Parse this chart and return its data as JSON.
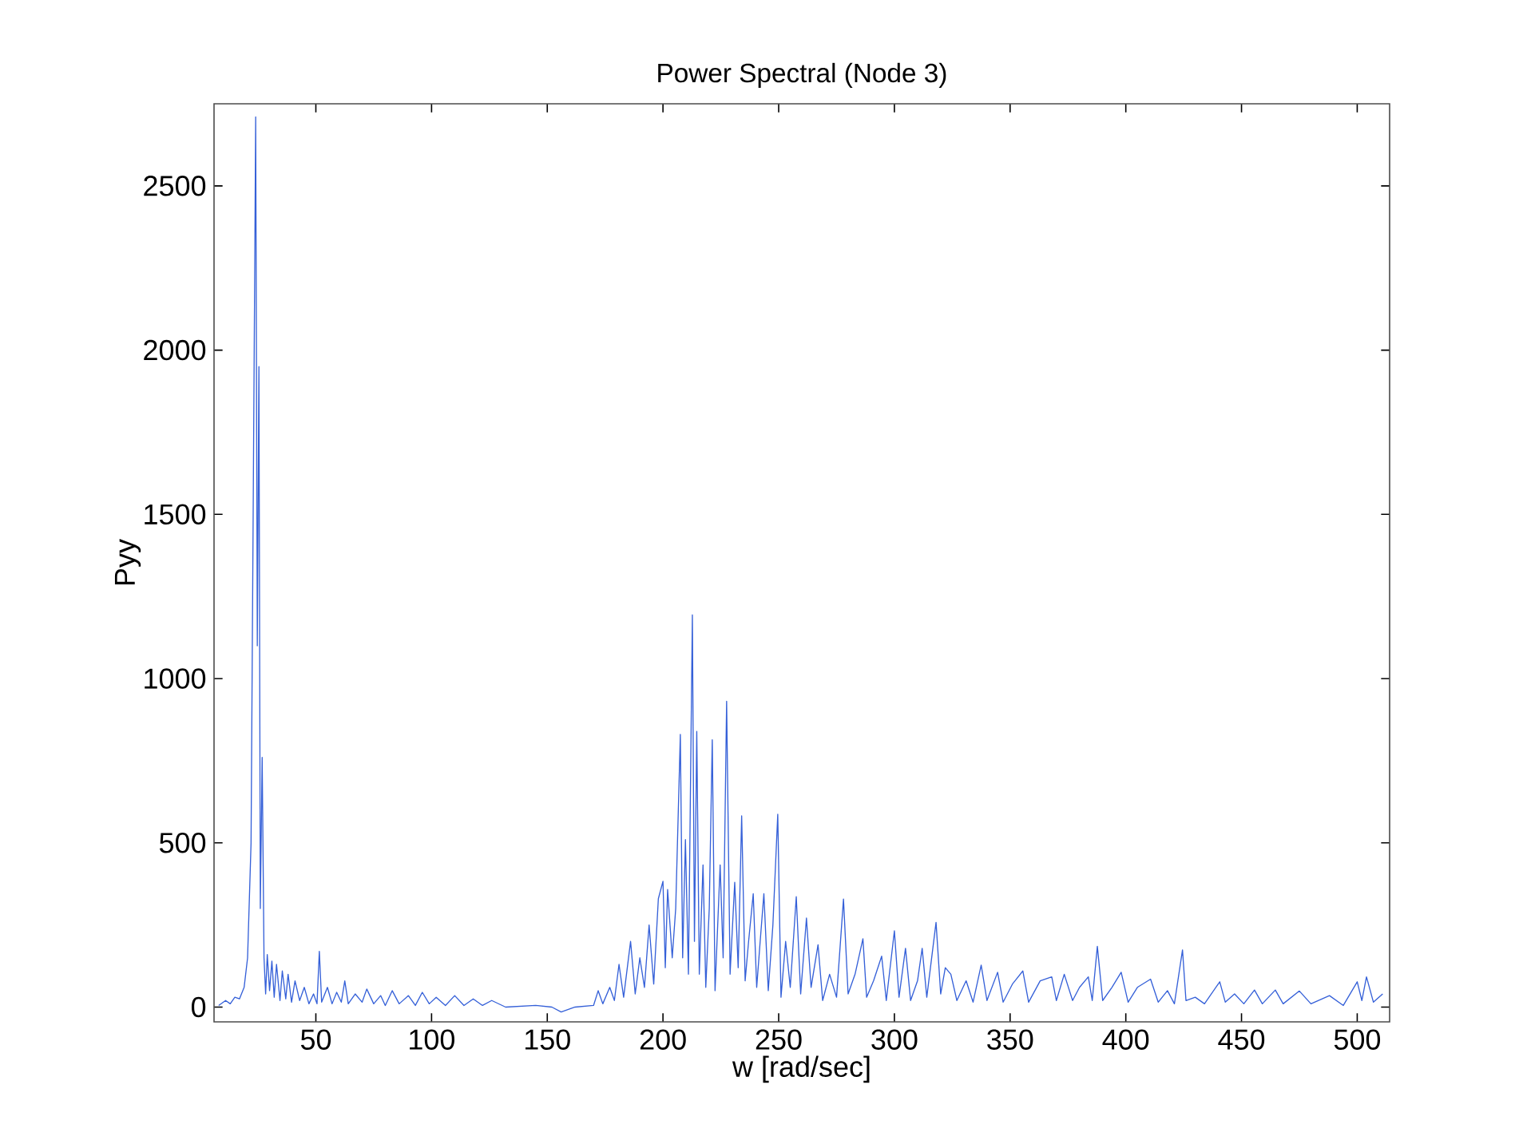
{
  "chart_data": {
    "type": "line",
    "title": "Power Spectral (Node 3)",
    "xlabel": "w [rad/sec]",
    "ylabel": "Pyy",
    "xlim": [
      6,
      514
    ],
    "ylim": [
      -45,
      2750
    ],
    "xticks": [
      50,
      100,
      150,
      200,
      250,
      300,
      350,
      400,
      450,
      500
    ],
    "yticks": [
      0,
      500,
      1000,
      1500,
      2000,
      2500
    ],
    "x": [
      8,
      11,
      13,
      15,
      17,
      19,
      20.5,
      22,
      23,
      24,
      24.7,
      25.4,
      26,
      26.8,
      27.6,
      28.3,
      29,
      30,
      31,
      32,
      33,
      34.5,
      35.5,
      37,
      38,
      39.5,
      41,
      43,
      45,
      47,
      49,
      50.5,
      51.5,
      52.5,
      55,
      57,
      59,
      61,
      62.5,
      64,
      67,
      70,
      72,
      75,
      78,
      80,
      83,
      86,
      90,
      93,
      96,
      99,
      102,
      106,
      110,
      114,
      118,
      122,
      126,
      132,
      145,
      152,
      156,
      162,
      170,
      172,
      174,
      177,
      179,
      181,
      183,
      186,
      188,
      190,
      192,
      194,
      196,
      198,
      200,
      201,
      202,
      204,
      205.5,
      207.5,
      208.5,
      209.7,
      211,
      212.7,
      213.6,
      214.6,
      215.7,
      217.3,
      218.5,
      220,
      221.3,
      222.5,
      224.7,
      226,
      227.5,
      229,
      231,
      232.5,
      234,
      235.5,
      237,
      239,
      240.5,
      242,
      243.6,
      245.5,
      247.5,
      249.6,
      251,
      253,
      255,
      257.6,
      259.5,
      262,
      264,
      267,
      269,
      272,
      275,
      278,
      280,
      283,
      286.4,
      288,
      291,
      294.5,
      296.5,
      300,
      302,
      304.8,
      307,
      310,
      312,
      314,
      318,
      320,
      322,
      324.4,
      327,
      331,
      334,
      337.5,
      340,
      344.6,
      347,
      351,
      355.5,
      358,
      363,
      368,
      370,
      373.4,
      377,
      380,
      383.8,
      385.5,
      387.7,
      390,
      394,
      398,
      401,
      405,
      410.7,
      414,
      418,
      421,
      424.5,
      426,
      430,
      434,
      440.6,
      443,
      447,
      451,
      455.6,
      459,
      464.6,
      468,
      475,
      480,
      488,
      494,
      500,
      502,
      504,
      507,
      511
    ],
    "series": [
      {
        "color": "#3560d8",
        "values": [
          5,
          20,
          10,
          30,
          25,
          60,
          150,
          500,
          1600,
          2710,
          1100,
          1950,
          300,
          760,
          150,
          40,
          160,
          50,
          140,
          30,
          130,
          20,
          110,
          25,
          100,
          15,
          80,
          20,
          60,
          10,
          40,
          10,
          170,
          15,
          60,
          10,
          45,
          15,
          80,
          10,
          40,
          15,
          55,
          10,
          35,
          5,
          50,
          10,
          35,
          5,
          45,
          10,
          30,
          5,
          35,
          5,
          25,
          5,
          20,
          0,
          5,
          0,
          -15,
          0,
          5,
          50,
          10,
          60,
          20,
          130,
          30,
          200,
          40,
          150,
          60,
          250,
          70,
          330,
          383,
          120,
          358,
          150,
          300,
          830,
          150,
          510,
          100,
          1194,
          200,
          839,
          100,
          433,
          60,
          300,
          814,
          50,
          433,
          150,
          931,
          100,
          380,
          120,
          582,
          80,
          200,
          345,
          60,
          200,
          345,
          50,
          250,
          587,
          30,
          200,
          60,
          336,
          40,
          271,
          60,
          190,
          20,
          100,
          30,
          329,
          40,
          100,
          208,
          30,
          80,
          155,
          20,
          232,
          30,
          179,
          20,
          80,
          179,
          30,
          258,
          40,
          120,
          100,
          20,
          80,
          15,
          128,
          20,
          106,
          15,
          70,
          110,
          15,
          80,
          92,
          20,
          100,
          20,
          60,
          92,
          20,
          185,
          20,
          60,
          106,
          15,
          60,
          85,
          15,
          50,
          10,
          174,
          20,
          30,
          10,
          77,
          15,
          40,
          10,
          52,
          10,
          52,
          10,
          49,
          10,
          35,
          5,
          77,
          20,
          92,
          15,
          40
        ]
      }
    ]
  }
}
